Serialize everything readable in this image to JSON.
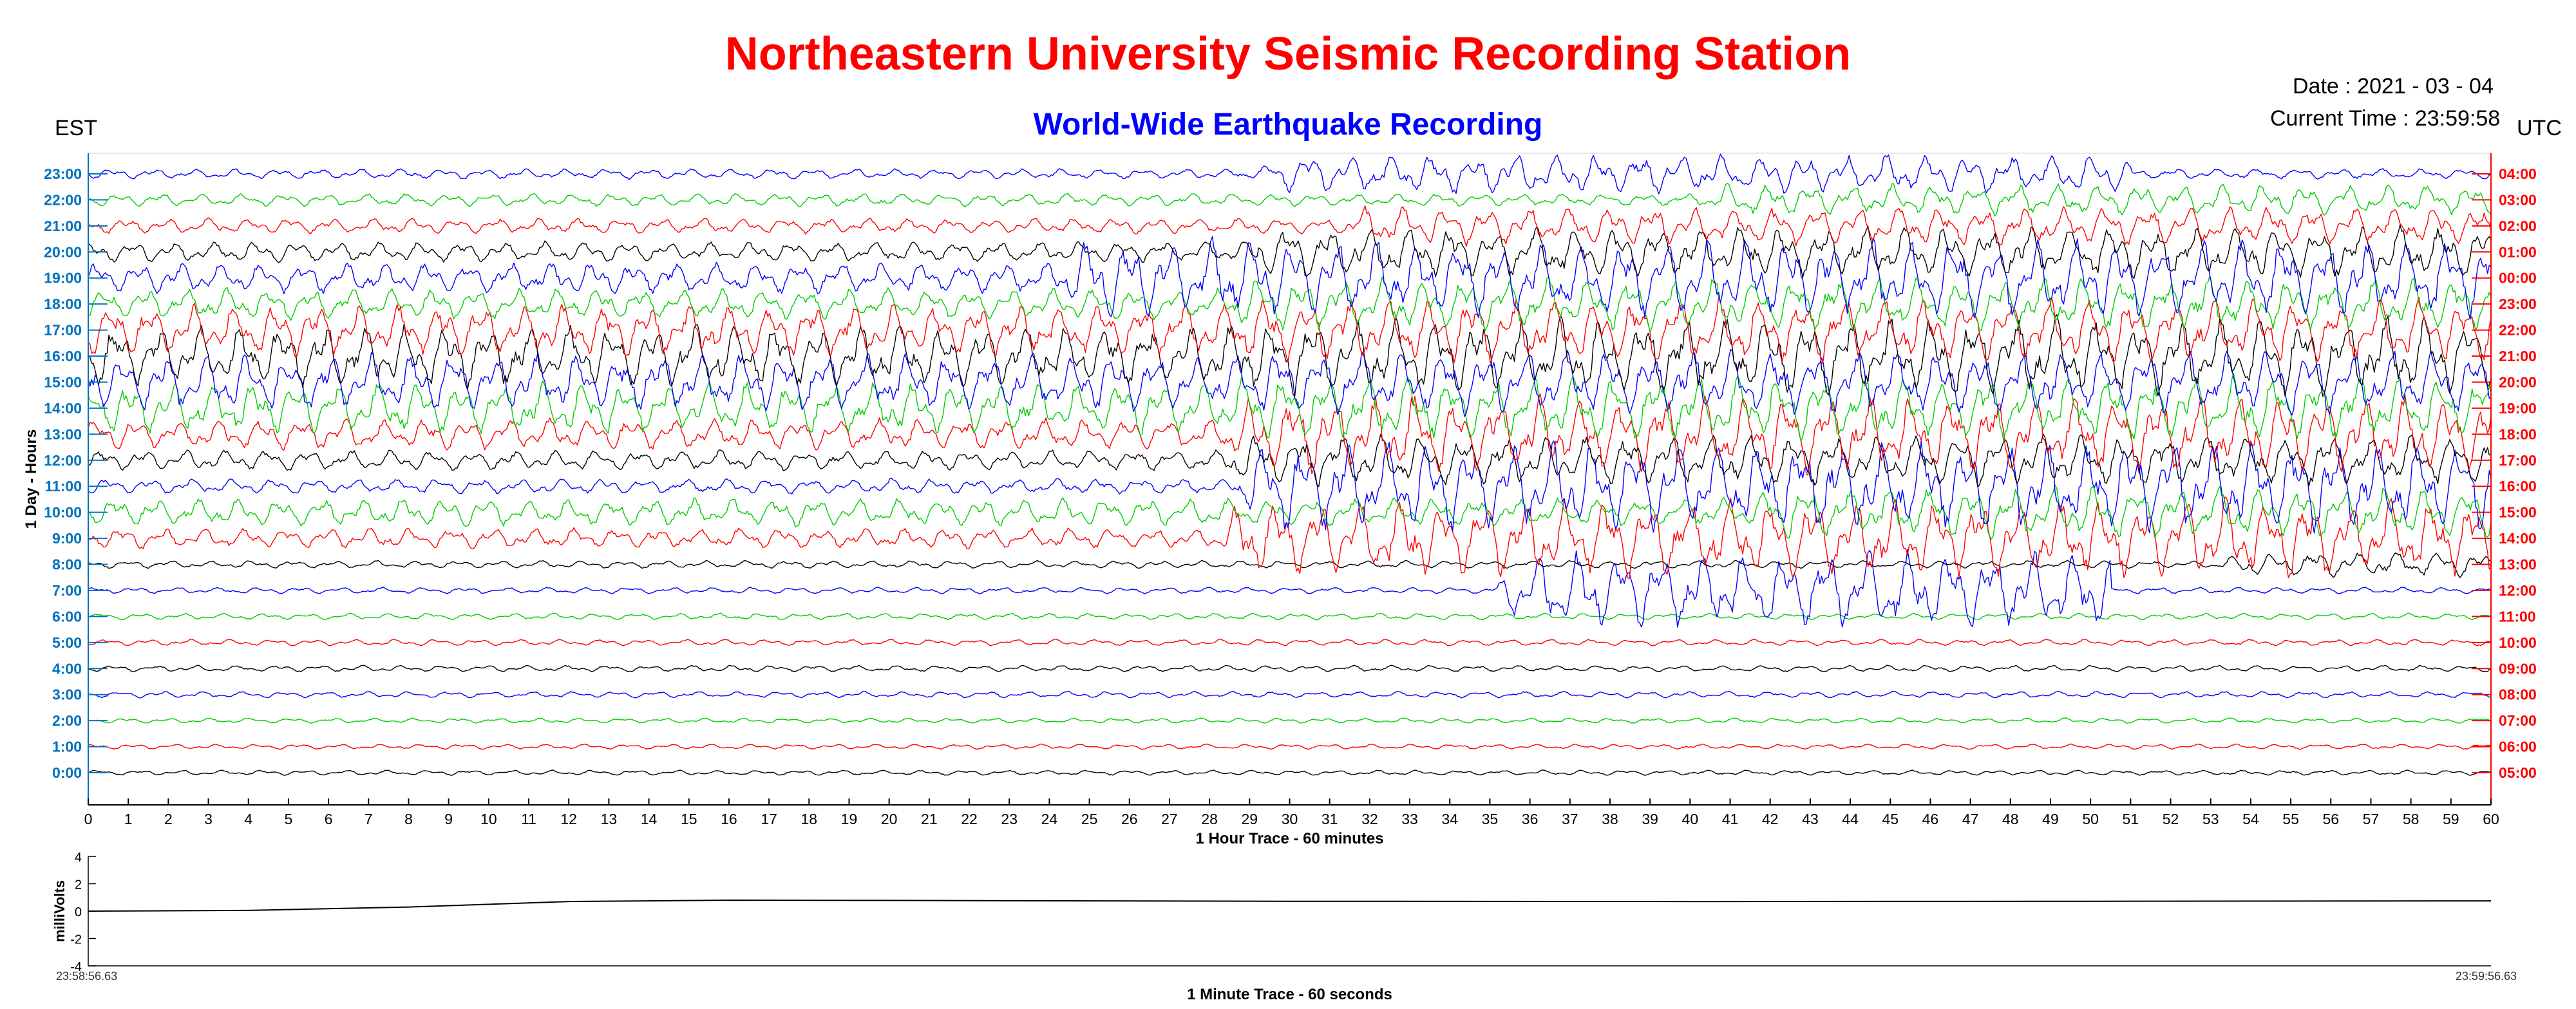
{
  "header": {
    "title": "Northeastern University Seismic Recording Station",
    "subtitle": "World-Wide Earthquake Recording",
    "date_text": "Date : 2021 - 03 - 04",
    "time_text": "Current Time : 23:59:58",
    "left_zone": "EST",
    "right_zone": "UTC"
  },
  "colors": {
    "title": "#ff0000",
    "subtitle": "#0000ff",
    "left_axis": "#0072bd",
    "right_axis": "#ff0000",
    "trace_cycle": [
      "#000000",
      "#ff0000",
      "#00cc00",
      "#0000ff"
    ]
  },
  "chart_data": [
    {
      "type": "line",
      "xlabel": "1 Hour Trace - 60 minutes",
      "ylabel": "1 Day - Hours",
      "xlim": [
        0,
        60
      ],
      "x_ticks": [
        "0",
        "1",
        "2",
        "3",
        "4",
        "5",
        "6",
        "7",
        "8",
        "9",
        "10",
        "11",
        "12",
        "13",
        "14",
        "15",
        "16",
        "17",
        "18",
        "19",
        "20",
        "21",
        "22",
        "23",
        "24",
        "25",
        "26",
        "27",
        "28",
        "29",
        "30",
        "31",
        "32",
        "33",
        "34",
        "35",
        "36",
        "37",
        "38",
        "39",
        "40",
        "41",
        "42",
        "43",
        "44",
        "45",
        "46",
        "47",
        "48",
        "49",
        "50",
        "51",
        "52",
        "53",
        "54",
        "55",
        "56",
        "57",
        "58",
        "59",
        "60"
      ],
      "y_labels_left": [
        "0:00",
        "1:00",
        "2:00",
        "3:00",
        "4:00",
        "5:00",
        "6:00",
        "7:00",
        "8:00",
        "9:00",
        "10:00",
        "11:00",
        "12:00",
        "13:00",
        "14:00",
        "15:00",
        "16:00",
        "17:00",
        "18:00",
        "19:00",
        "20:00",
        "21:00",
        "22:00",
        "23:00"
      ],
      "y_labels_right": [
        "05:00",
        "06:00",
        "07:00",
        "08:00",
        "09:00",
        "10:00",
        "11:00",
        "12:00",
        "13:00",
        "14:00",
        "15:00",
        "16:00",
        "17:00",
        "18:00",
        "19:00",
        "20:00",
        "21:00",
        "22:00",
        "23:00",
        "00:00",
        "01:00",
        "02:00",
        "03:00",
        "04:00"
      ],
      "series": [
        {
          "color": "#000000",
          "amplitude": 0.2,
          "events": []
        },
        {
          "color": "#ff0000",
          "amplitude": 0.2,
          "events": []
        },
        {
          "color": "#00cc00",
          "amplitude": 0.2,
          "events": []
        },
        {
          "color": "#0000ff",
          "amplitude": 0.25,
          "events": []
        },
        {
          "color": "#000000",
          "amplitude": 0.25,
          "events": []
        },
        {
          "color": "#ff0000",
          "amplitude": 0.25,
          "events": []
        },
        {
          "color": "#00cc00",
          "amplitude": 0.25,
          "events": []
        },
        {
          "color": "#0000ff",
          "amplitude": 0.25,
          "events": [
            {
              "start": 35.0,
              "end": 50.5,
              "amp": 3.0
            }
          ]
        },
        {
          "color": "#000000",
          "amplitude": 0.3,
          "events": [
            {
              "start": 53.0,
              "end": 60.0,
              "amp": 1.0
            }
          ]
        },
        {
          "color": "#ff0000",
          "amplitude": 0.8,
          "events": [
            {
              "start": 28.0,
              "end": 60.0,
              "amp": 3.0
            }
          ]
        },
        {
          "color": "#00cc00",
          "amplitude": 1.1,
          "events": [
            {
              "start": 41.0,
              "end": 60.0,
              "amp": 2.0
            }
          ]
        },
        {
          "color": "#0000ff",
          "amplitude": 0.6,
          "events": [
            {
              "start": 28.5,
              "end": 60.0,
              "amp": 3.5
            }
          ]
        },
        {
          "color": "#000000",
          "amplitude": 0.8,
          "events": [
            {
              "start": 28.0,
              "end": 60.0,
              "amp": 2.0
            }
          ]
        },
        {
          "color": "#ff0000",
          "amplitude": 1.2,
          "events": [
            {
              "start": 28.0,
              "end": 60.0,
              "amp": 3.0
            }
          ]
        },
        {
          "color": "#00cc00",
          "amplitude": 2.0,
          "events": [
            {
              "start": 28.0,
              "end": 60.0,
              "amp": 2.5
            }
          ]
        },
        {
          "color": "#0000ff",
          "amplitude": 2.2,
          "events": [
            {
              "start": 28.0,
              "end": 60.0,
              "amp": 2.5
            }
          ]
        },
        {
          "color": "#000000",
          "amplitude": 2.4,
          "events": [
            {
              "start": 28.0,
              "end": 60.0,
              "amp": 3.0
            }
          ]
        },
        {
          "color": "#ff0000",
          "amplitude": 2.0,
          "events": [
            {
              "start": 28.0,
              "end": 60.0,
              "amp": 2.5
            }
          ]
        },
        {
          "color": "#00cc00",
          "amplitude": 1.2,
          "events": [
            {
              "start": 28.0,
              "end": 60.0,
              "amp": 2.0
            }
          ]
        },
        {
          "color": "#0000ff",
          "amplitude": 1.2,
          "events": [
            {
              "start": 24.0,
              "end": 60.0,
              "amp": 3.0
            }
          ]
        },
        {
          "color": "#000000",
          "amplitude": 0.8,
          "events": [
            {
              "start": 28.5,
              "end": 60.0,
              "amp": 2.0
            }
          ]
        },
        {
          "color": "#ff0000",
          "amplitude": 0.6,
          "events": [
            {
              "start": 31.0,
              "end": 60.0,
              "amp": 1.5
            }
          ]
        },
        {
          "color": "#00cc00",
          "amplitude": 0.5,
          "events": [
            {
              "start": 40.0,
              "end": 60.0,
              "amp": 1.2
            }
          ]
        },
        {
          "color": "#0000ff",
          "amplitude": 0.4,
          "events": [
            {
              "start": 29.0,
              "end": 51.0,
              "amp": 1.5
            }
          ]
        }
      ]
    },
    {
      "type": "line",
      "xlabel": "1 Minute Trace  - 60 seconds",
      "ylabel": "milliVolts",
      "ylim": [
        -4,
        4
      ],
      "y_ticks": [
        "4",
        "2",
        "0",
        "-2",
        "-4"
      ],
      "x_start_label": "23:58:56.63",
      "x_end_label": "23:59:56.63",
      "x": [
        0,
        4,
        8,
        12,
        16,
        20,
        30,
        40,
        50,
        60
      ],
      "y": [
        0.0,
        0.05,
        0.3,
        0.7,
        0.8,
        0.78,
        0.72,
        0.7,
        0.72,
        0.75
      ]
    }
  ]
}
